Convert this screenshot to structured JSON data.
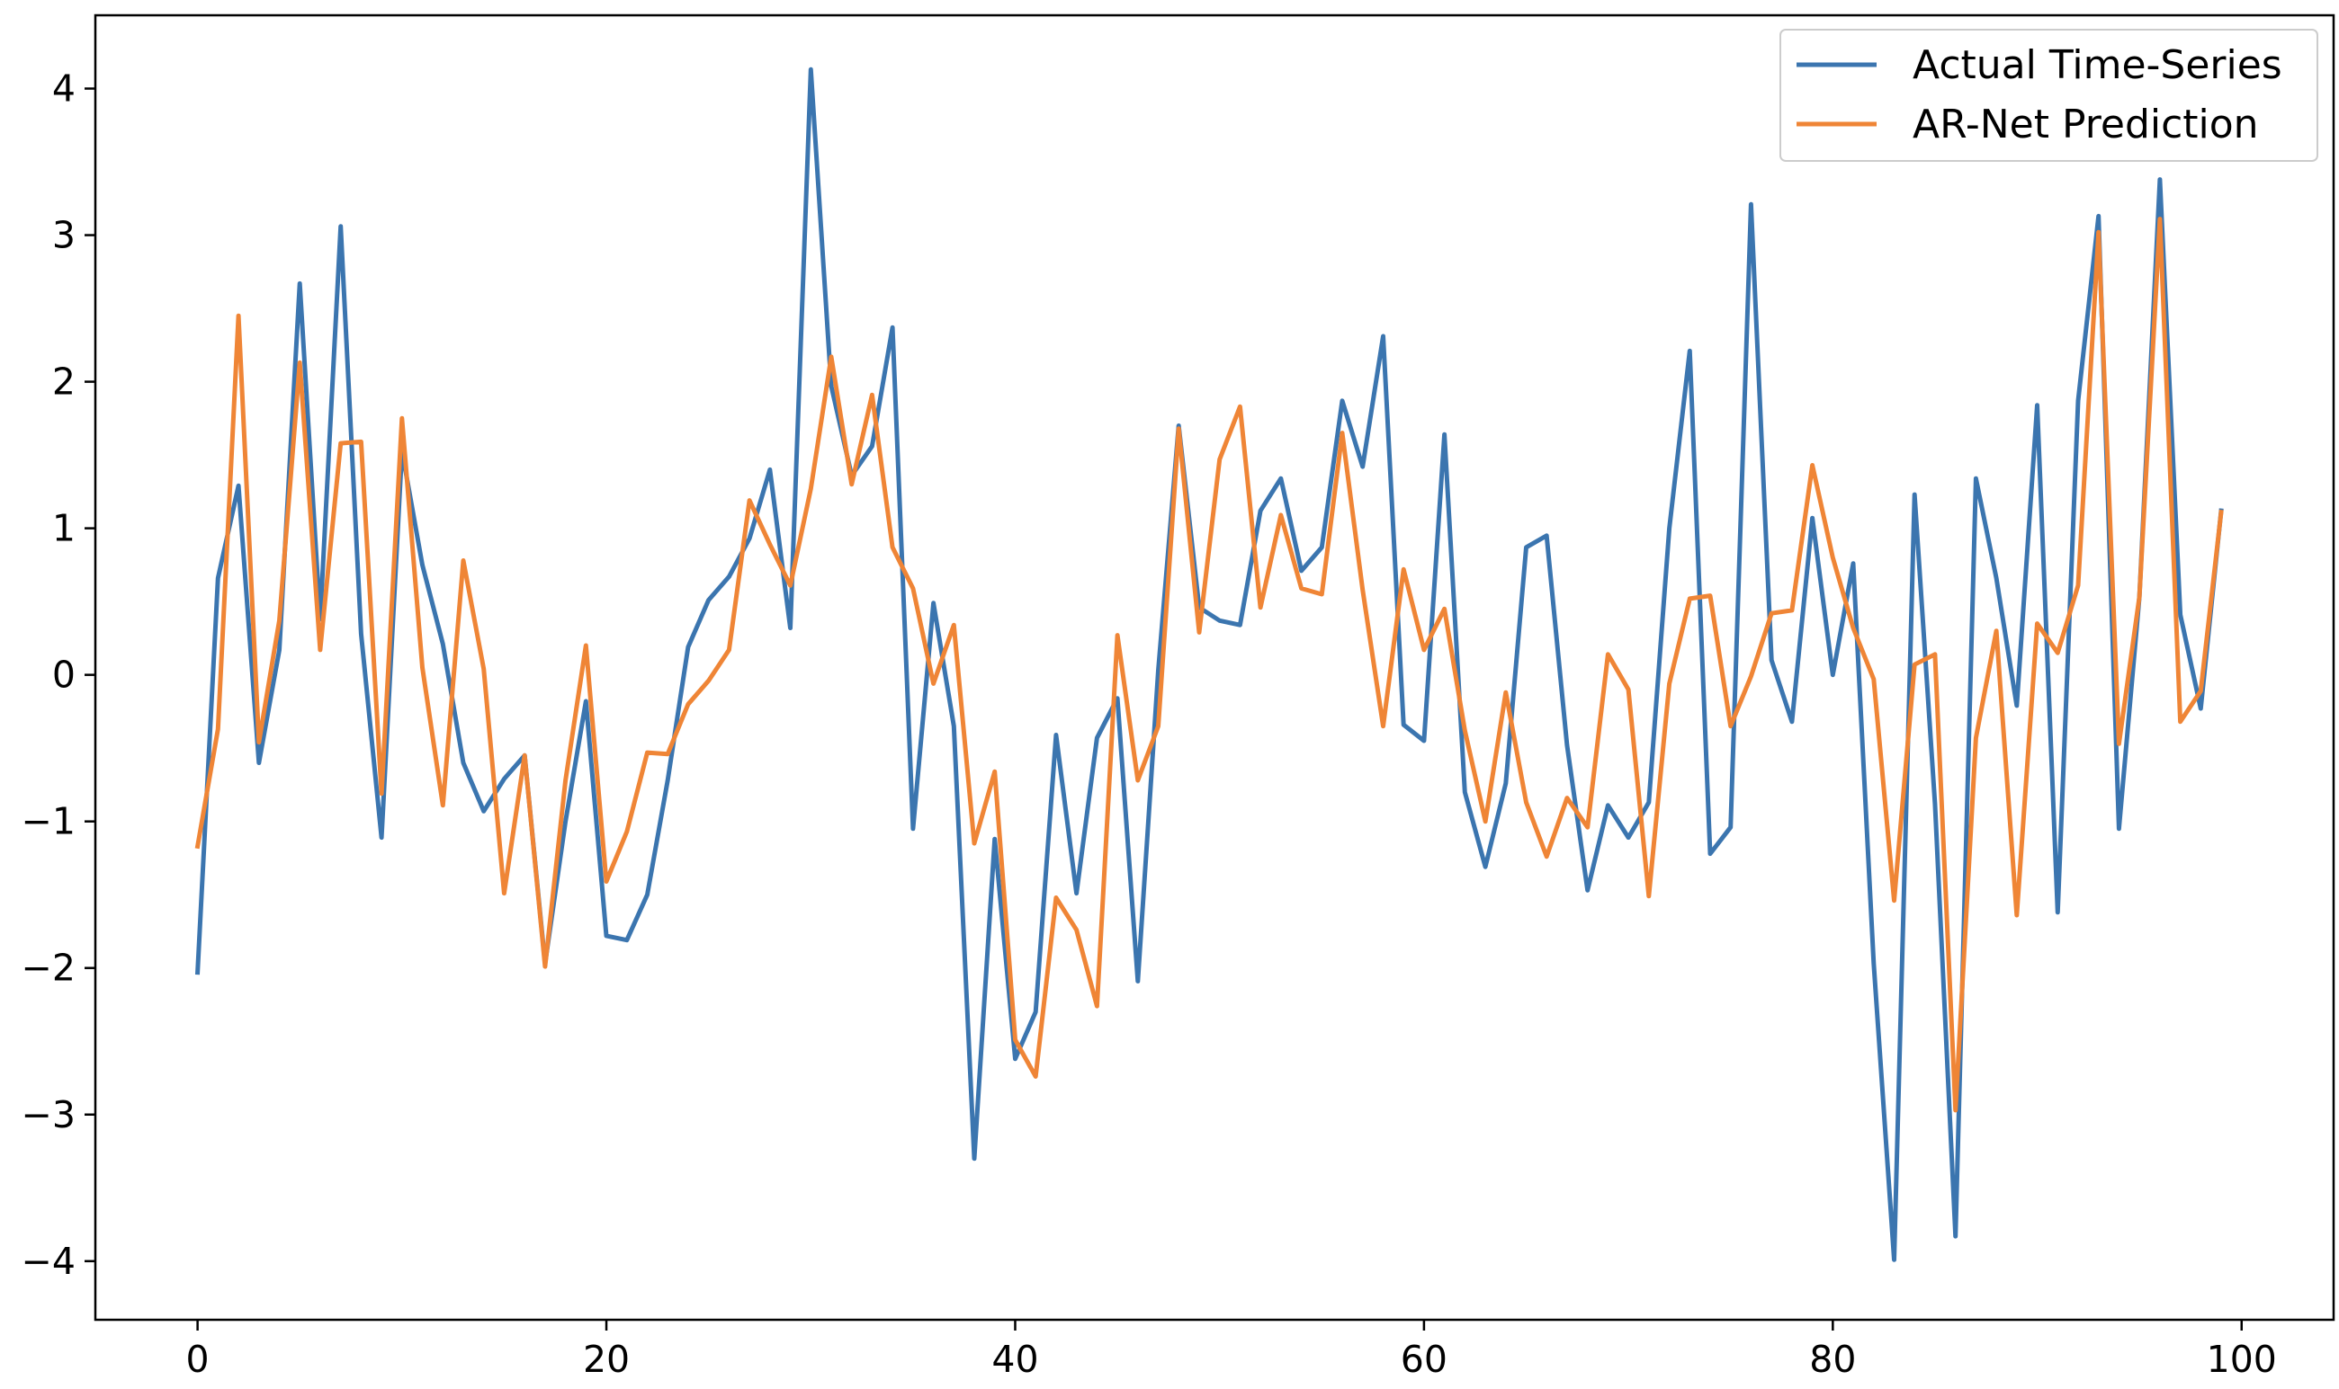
{
  "chart_data": {
    "type": "line",
    "title": "",
    "xlabel": "",
    "ylabel": "",
    "xlim": [
      -5,
      104.5
    ],
    "ylim": [
      -4.4,
      4.5
    ],
    "xticks": [
      0,
      20,
      40,
      60,
      80,
      100
    ],
    "xtick_labels": [
      "0",
      "20",
      "40",
      "60",
      "80",
      "100"
    ],
    "yticks": [
      4,
      3,
      2,
      1,
      0,
      -1,
      -2,
      -3,
      -4
    ],
    "ytick_labels": [
      "4",
      "3",
      "2",
      "1",
      "0",
      "−1",
      "−2",
      "−3",
      "−4"
    ],
    "grid": false,
    "legend_position": "top-right",
    "x": [
      0,
      1,
      2,
      3,
      4,
      5,
      6,
      7,
      8,
      9,
      10,
      11,
      12,
      13,
      14,
      15,
      16,
      17,
      18,
      19,
      20,
      21,
      22,
      23,
      24,
      25,
      26,
      27,
      28,
      29,
      30,
      31,
      32,
      33,
      34,
      35,
      36,
      37,
      38,
      39,
      40,
      41,
      42,
      43,
      44,
      45,
      46,
      47,
      48,
      49,
      50,
      51,
      52,
      53,
      54,
      55,
      56,
      57,
      58,
      59,
      60,
      61,
      62,
      63,
      64,
      65,
      66,
      67,
      68,
      69,
      70,
      71,
      72,
      73,
      74,
      75,
      76,
      77,
      78,
      79,
      80,
      81,
      82,
      83,
      84,
      85,
      86,
      87,
      88,
      89,
      90,
      91,
      92,
      93,
      94,
      95,
      96,
      97,
      98,
      99
    ],
    "series": [
      {
        "name": "Actual Time-Series",
        "color": "#3b75af",
        "values": [
          -2.03,
          0.66,
          1.29,
          -0.6,
          0.17,
          2.67,
          0.38,
          3.06,
          0.28,
          -1.11,
          1.53,
          0.75,
          0.21,
          -0.6,
          -0.93,
          -0.71,
          -0.55,
          -1.97,
          -1.0,
          -0.18,
          -1.78,
          -1.81,
          -1.5,
          -0.72,
          0.19,
          0.51,
          0.67,
          0.93,
          1.4,
          0.32,
          4.13,
          1.97,
          1.36,
          1.56,
          2.37,
          -1.05,
          0.49,
          -0.35,
          -3.3,
          -1.12,
          -2.62,
          -2.3,
          -0.41,
          -1.49,
          -0.43,
          -0.16,
          -2.09,
          0.03,
          1.7,
          0.46,
          0.37,
          0.34,
          1.12,
          1.34,
          0.71,
          0.87,
          1.87,
          1.42,
          2.31,
          -0.34,
          -0.45,
          1.64,
          -0.8,
          -1.31,
          -0.74,
          0.87,
          0.95,
          -0.48,
          -1.47,
          -0.89,
          -1.11,
          -0.87,
          1.0,
          2.21,
          -1.22,
          -1.04,
          3.21,
          0.1,
          -0.32,
          1.07,
          0.0,
          0.76,
          -1.97,
          -3.99,
          1.23,
          -0.88,
          -3.83,
          1.34,
          0.66,
          -0.21,
          1.84,
          -1.62,
          1.87,
          3.13,
          -1.05,
          0.53,
          3.38,
          0.41,
          -0.23,
          1.12
        ]
      },
      {
        "name": "AR-Net Prediction",
        "color": "#ef8536",
        "values": [
          -1.17,
          -0.37,
          2.45,
          -0.46,
          0.37,
          2.13,
          0.17,
          1.58,
          1.59,
          -0.81,
          1.75,
          0.05,
          -0.89,
          0.78,
          0.04,
          -1.49,
          -0.55,
          -1.99,
          -0.72,
          0.2,
          -1.41,
          -1.07,
          -0.53,
          -0.54,
          -0.2,
          -0.04,
          0.17,
          1.19,
          0.89,
          0.61,
          1.27,
          2.17,
          1.3,
          1.91,
          0.87,
          0.59,
          -0.06,
          0.34,
          -1.15,
          -0.66,
          -2.49,
          -2.74,
          -1.52,
          -1.74,
          -2.26,
          0.27,
          -0.72,
          -0.35,
          1.68,
          0.29,
          1.47,
          1.83,
          0.46,
          1.09,
          0.59,
          0.55,
          1.65,
          0.58,
          -0.35,
          0.72,
          0.17,
          0.45,
          -0.38,
          -1.0,
          -0.12,
          -0.87,
          -1.24,
          -0.84,
          -1.04,
          0.14,
          -0.1,
          -1.51,
          -0.06,
          0.52,
          0.54,
          -0.35,
          -0.01,
          0.42,
          0.44,
          1.43,
          0.8,
          0.32,
          -0.03,
          -1.54,
          0.07,
          0.14,
          -2.97,
          -0.43,
          0.3,
          -1.64,
          0.35,
          0.15,
          0.61,
          3.02,
          -0.47,
          0.53,
          3.11,
          -0.32,
          -0.11,
          1.11
        ]
      }
    ]
  }
}
